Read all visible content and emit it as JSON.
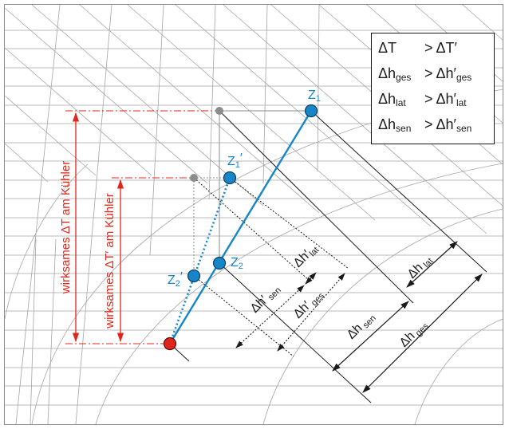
{
  "colors": {
    "accent_red": "#e0261b",
    "accent_blue": "#1686c8",
    "line_dark": "#1a1a1a",
    "grid": "#9a9a9a",
    "point_gray": "#8c8c8c"
  },
  "legend": {
    "row1": {
      "lhs": "ΔT",
      "rhs": "> ΔT′"
    },
    "row2": {
      "lhs_main": "Δh",
      "lhs_sub": "ges",
      "rhs_main": "> Δh′",
      "rhs_sub": "ges"
    },
    "row3": {
      "lhs_main": "Δh",
      "lhs_sub": "lat",
      "rhs_main": "> Δh′",
      "rhs_sub": "lat"
    },
    "row4": {
      "lhs_main": "Δh",
      "lhs_sub": "sen",
      "rhs_main": "> Δh′",
      "rhs_sub": "sen"
    }
  },
  "points": {
    "z1": {
      "main": "Z",
      "sub": "1"
    },
    "z1p": {
      "main": "Z",
      "sub": "1",
      "prime": "′"
    },
    "z2": {
      "main": "Z",
      "sub": "2"
    },
    "z2p": {
      "main": "Z",
      "sub": "2",
      "prime": "′"
    }
  },
  "vertical_labels": {
    "delta_t": "wirksames ΔT am Kühler",
    "delta_t_prime": "wirksames ΔT′ am Kühler"
  },
  "dimension_labels": {
    "dh_lat": {
      "main": "Δh",
      "sub": " lat"
    },
    "dh_sen": {
      "main": "Δh",
      "sub": " sen"
    },
    "dh_ges": {
      "main": "Δh",
      "sub": " ges"
    },
    "dhp_lat": {
      "main": "Δh′",
      "sub": "lat"
    },
    "dhp_sen": {
      "main": "Δh′",
      "sub": " sen"
    },
    "dhp_ges": {
      "main": "Δh′",
      "sub": " ges"
    }
  }
}
